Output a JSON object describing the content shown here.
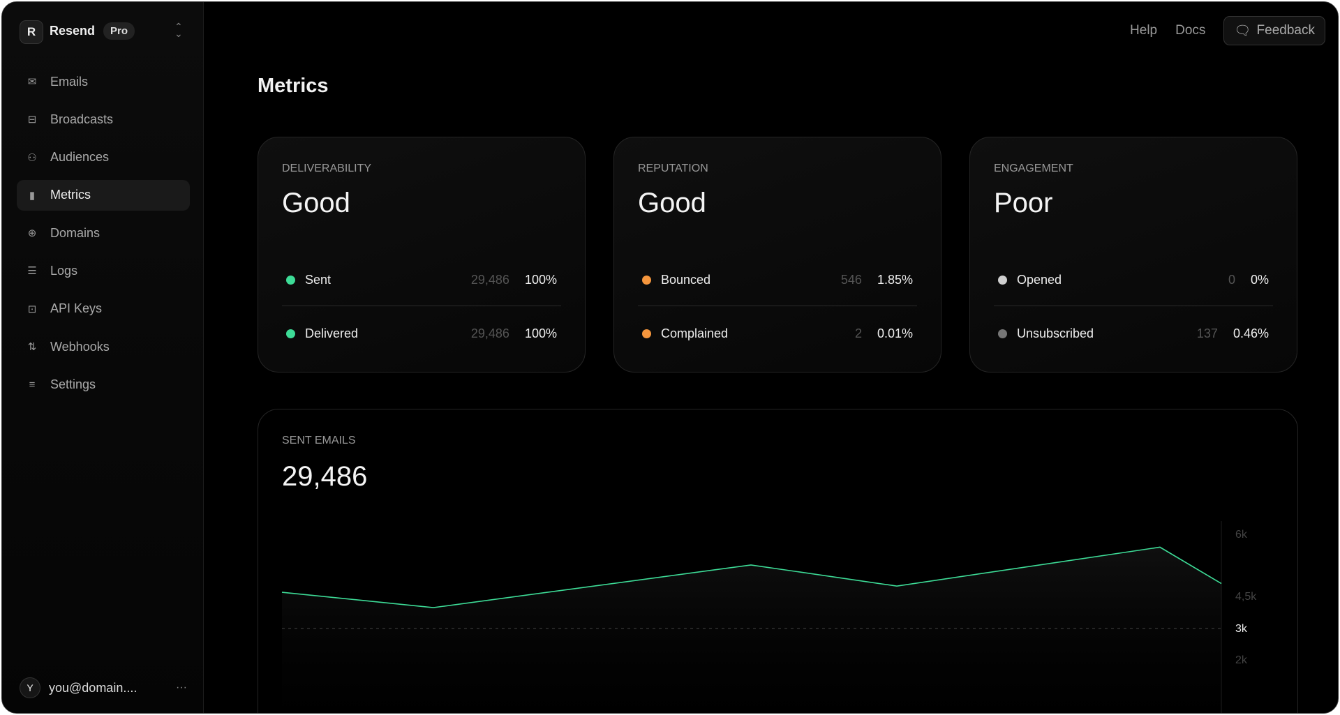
{
  "sidebar": {
    "brand": "Resend",
    "plan": "Pro",
    "logo": "R",
    "items": [
      {
        "label": "Emails",
        "icon": "mail-icon"
      },
      {
        "label": "Broadcasts",
        "icon": "inbox-icon"
      },
      {
        "label": "Audiences",
        "icon": "users-icon"
      },
      {
        "label": "Metrics",
        "icon": "bar-chart-icon",
        "active": true
      },
      {
        "label": "Domains",
        "icon": "globe-icon"
      },
      {
        "label": "Logs",
        "icon": "logs-icon"
      },
      {
        "label": "API Keys",
        "icon": "lock-icon"
      },
      {
        "label": "Webhooks",
        "icon": "arrows-icon"
      },
      {
        "label": "Settings",
        "icon": "sliders-icon"
      }
    ],
    "user": {
      "initial": "Y",
      "email": "you@domain....",
      "more": "···"
    }
  },
  "header": {
    "help": "Help",
    "docs": "Docs",
    "feedback": "Feedback"
  },
  "page": {
    "title": "Metrics"
  },
  "cards": [
    {
      "label": "DELIVERABILITY",
      "value": "Good",
      "rows": [
        {
          "name": "Sent",
          "count": "29,486",
          "pct": "100%",
          "color": "#3ddc97"
        },
        {
          "name": "Delivered",
          "count": "29,486",
          "pct": "100%",
          "color": "#3ddc97"
        }
      ]
    },
    {
      "label": "REPUTATION",
      "value": "Good",
      "rows": [
        {
          "name": "Bounced",
          "count": "546",
          "pct": "1.85%",
          "color": "#f5963d"
        },
        {
          "name": "Complained",
          "count": "2",
          "pct": "0.01%",
          "color": "#f5963d"
        }
      ]
    },
    {
      "label": "ENGAGEMENT",
      "value": "Poor",
      "rows": [
        {
          "name": "Opened",
          "count": "0",
          "pct": "0%",
          "color": "#cfcfcf"
        },
        {
          "name": "Unsubscribed",
          "count": "137",
          "pct": "0.46%",
          "color": "#777777"
        }
      ]
    }
  ],
  "sent": {
    "label": "SENT EMAILS",
    "value": "29,486"
  },
  "chart_data": {
    "type": "area",
    "values": [
      4600,
      4230,
      5260,
      4750,
      5690,
      4810
    ],
    "yticks": [
      "6k",
      "4,5k",
      "3k",
      "2k"
    ],
    "ytick_values": [
      6000,
      4500,
      3000,
      2000
    ],
    "highlight_tick": "3k",
    "reference_line": 3000,
    "line_color": "#3ddc97",
    "grid": false
  }
}
